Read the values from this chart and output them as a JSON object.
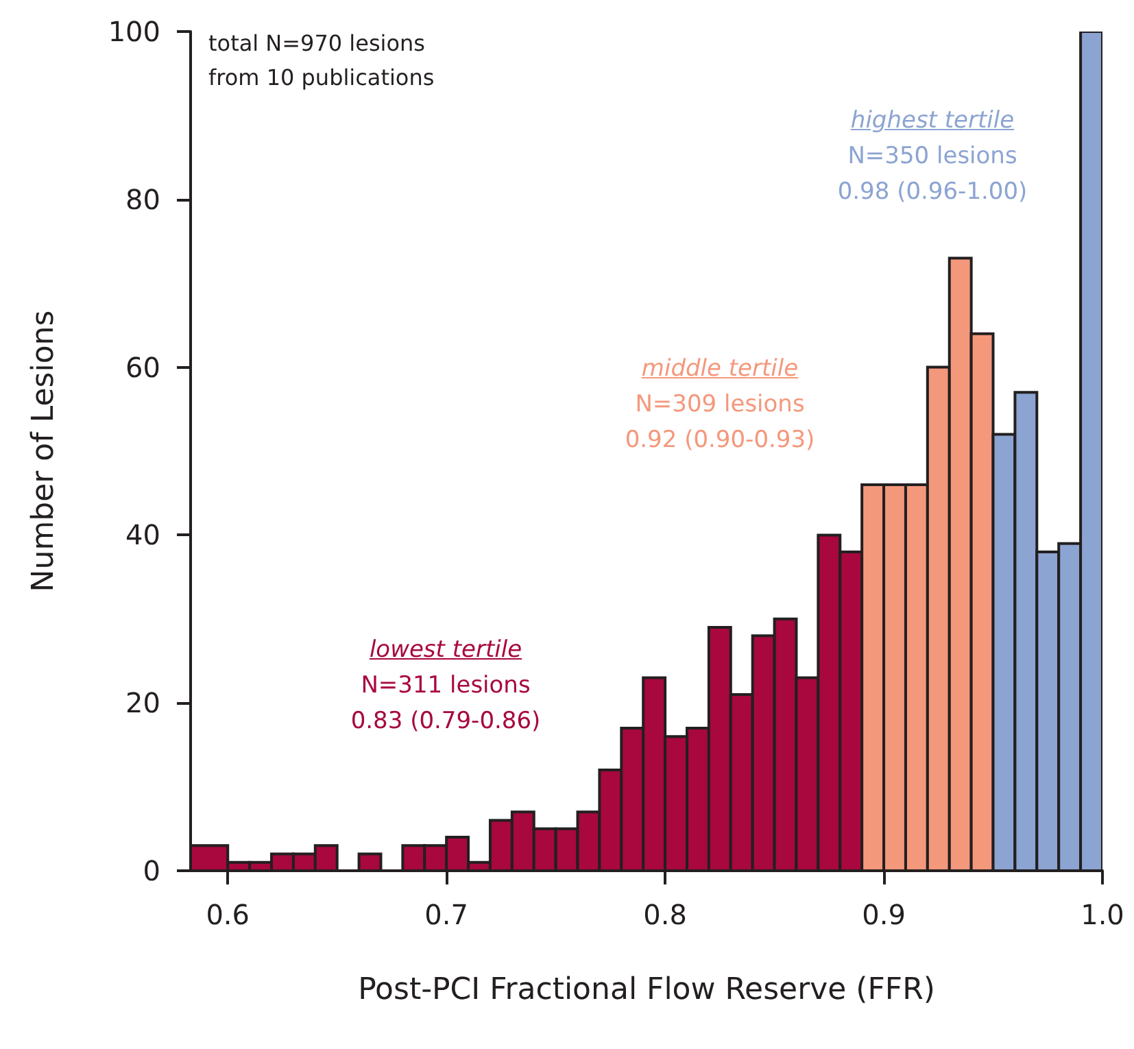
{
  "chart_data": {
    "type": "histogram",
    "xlabel": "Post-PCI Fractional Flow Reserve (FFR)",
    "ylabel": "Number of Lesions",
    "annotations": [
      "total N=970 lesions\nfrom 10 publications",
      "N=311 lesions\n0.83 (0.79-0.86)",
      "N=309 lesions\n0.92 (0.90-0.93)",
      "N=350 lesions\n0.98 (0.96-1.00)"
    ],
    "bins": [
      0.583,
      0.6,
      0.61,
      0.62,
      0.63,
      0.64,
      0.65,
      0.66,
      0.67,
      0.68,
      0.69,
      0.7,
      0.71,
      0.72,
      0.73,
      0.74,
      0.75,
      0.76,
      0.77,
      0.78,
      0.79,
      0.8,
      0.81,
      0.82,
      0.83,
      0.84,
      0.85,
      0.86,
      0.87,
      0.88,
      0.89,
      0.9,
      0.91,
      0.92,
      0.93,
      0.94,
      0.95,
      0.96,
      0.97,
      0.98,
      0.99,
      1.0
    ],
    "series": [
      {
        "name": "lowest tertile",
        "color": "#a8083d",
        "values": [
          3,
          1,
          1,
          2,
          2,
          3,
          0,
          2,
          0,
          3,
          3,
          4,
          1,
          6,
          7,
          5,
          5,
          7,
          12,
          17,
          23,
          16,
          17,
          29,
          21,
          28,
          30,
          23,
          40,
          38,
          null,
          null,
          null,
          null,
          null,
          null,
          null,
          null,
          null,
          null,
          null
        ]
      },
      {
        "name": "middle tertile",
        "color": "#f4987c",
        "values": [
          null,
          null,
          null,
          null,
          null,
          null,
          null,
          null,
          null,
          null,
          null,
          null,
          null,
          null,
          null,
          null,
          null,
          null,
          null,
          null,
          null,
          null,
          null,
          null,
          null,
          null,
          null,
          null,
          null,
          null,
          46,
          46,
          46,
          60,
          73,
          64,
          null,
          null,
          null,
          null,
          null
        ]
      },
      {
        "name": "highest tertile",
        "color": "#8ca4d2",
        "values": [
          null,
          null,
          null,
          null,
          null,
          null,
          null,
          null,
          null,
          null,
          null,
          null,
          null,
          null,
          null,
          null,
          null,
          null,
          null,
          null,
          null,
          null,
          null,
          null,
          null,
          null,
          null,
          null,
          null,
          null,
          null,
          null,
          null,
          null,
          null,
          null,
          52,
          57,
          38,
          39,
          100
        ]
      }
    ],
    "xlim": [
      0.583,
      1.0
    ],
    "xticks": [
      0.6,
      0.7,
      0.8,
      0.9,
      {
        "value": 1.0,
        "label": "1.0"
      }
    ],
    "ylim": [
      0,
      100
    ],
    "yticks": [
      0,
      20,
      40,
      60,
      80,
      100
    ]
  }
}
